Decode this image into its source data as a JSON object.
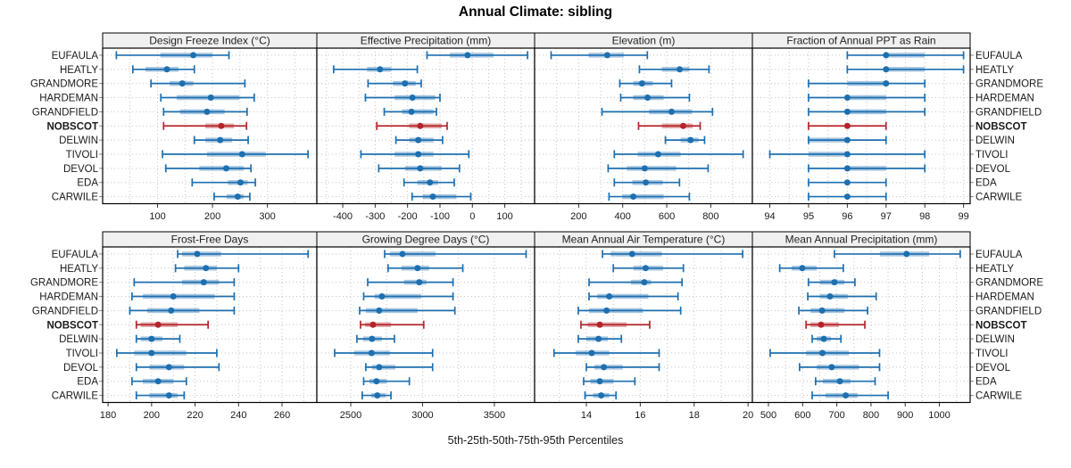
{
  "title": "Annual Climate: sibling",
  "caption": "5th-25th-50th-75th-95th Percentiles",
  "chart_data": {
    "type": "dotplot",
    "title": "Annual Climate: sibling",
    "caption": "5th-25th-50th-75th-95th Percentiles",
    "percentiles": [
      "5th",
      "25th",
      "50th",
      "75th",
      "95th"
    ],
    "legend_position": "none",
    "grid": "dotted",
    "stations": [
      "EUFAULA",
      "HEATLY",
      "GRANDMORE",
      "HARDEMAN",
      "GRANDFIELD",
      "NOBSCOT",
      "DELWIN",
      "TIVOLI",
      "DEVOL",
      "EDA",
      "CARWILE"
    ],
    "highlighted_station": "NOBSCOT",
    "colors": {
      "series_blue": "#1d6fb0",
      "highlight_red": "#b5242b",
      "grid_line": "#c4c4c4",
      "header_bg": "#f0f0f0",
      "panel_border": "#000000",
      "text": "#1a1a1a"
    },
    "panels": [
      {
        "name": "Design Freeze Index (°C)",
        "row": 0,
        "col": 0,
        "xlim": [
          0,
          390
        ],
        "ticks": [
          100,
          200,
          300
        ],
        "grid_step": 50,
        "values": [
          [
            25,
            105,
            165,
            200,
            230
          ],
          [
            55,
            78,
            117,
            138,
            167
          ],
          [
            88,
            122,
            145,
            165,
            259
          ],
          [
            106,
            135,
            197,
            249,
            276
          ],
          [
            111,
            141,
            190,
            222,
            263
          ],
          [
            111,
            187,
            216,
            239,
            262
          ],
          [
            167,
            187,
            214,
            236,
            265
          ],
          [
            109,
            190,
            254,
            297,
            374
          ],
          [
            115,
            176,
            225,
            257,
            270
          ],
          [
            163,
            228,
            251,
            264,
            278
          ],
          [
            203,
            226,
            246,
            257,
            268
          ]
        ]
      },
      {
        "name": "Effective Precipitation (mm)",
        "row": 0,
        "col": 1,
        "xlim": [
          -480,
          192
        ],
        "ticks": [
          -400,
          -300,
          -200,
          -100,
          0,
          100
        ],
        "grid_step": 50,
        "values": [
          [
            -140,
            -70,
            -15,
            65,
            170
          ],
          [
            -428,
            -325,
            -285,
            -250,
            -170
          ],
          [
            -322,
            -245,
            -208,
            -175,
            -158
          ],
          [
            -330,
            -240,
            -185,
            -115,
            -100
          ],
          [
            -272,
            -217,
            -188,
            -120,
            -111
          ],
          [
            -295,
            -195,
            -161,
            -95,
            -78
          ],
          [
            -236,
            -195,
            -167,
            -120,
            -92
          ],
          [
            -344,
            -240,
            -167,
            -120,
            -11
          ],
          [
            -289,
            -208,
            -161,
            -95,
            -40
          ],
          [
            -211,
            -170,
            -131,
            -106,
            -56
          ],
          [
            -186,
            -153,
            -122,
            -50,
            -5
          ]
        ]
      },
      {
        "name": "Elevation (m)",
        "row": 0,
        "col": 2,
        "xlim": [
          0,
          989
        ],
        "ticks": [
          200,
          400,
          600,
          800
        ],
        "grid_step": 100,
        "values": [
          [
            75,
            245,
            330,
            405,
            512
          ],
          [
            476,
            578,
            659,
            703,
            792
          ],
          [
            387,
            448,
            488,
            537,
            622
          ],
          [
            391,
            448,
            513,
            586,
            703
          ],
          [
            306,
            520,
            622,
            715,
            808
          ],
          [
            472,
            578,
            675,
            718,
            752
          ],
          [
            594,
            663,
            708,
            744,
            772
          ],
          [
            362,
            468,
            561,
            663,
            947
          ],
          [
            334,
            419,
            500,
            643,
            788
          ],
          [
            362,
            444,
            505,
            582,
            658
          ],
          [
            338,
            399,
            448,
            586,
            703
          ]
        ]
      },
      {
        "name": "Fraction of Annual PPT as Rain",
        "row": 0,
        "col": 3,
        "xlim": [
          93.55,
          99.17
        ],
        "ticks": [
          94,
          95,
          96,
          97,
          98,
          99
        ],
        "grid_step": 0.5,
        "values": [
          [
            96,
            97,
            97,
            98,
            99
          ],
          [
            96,
            97,
            97,
            98,
            99
          ],
          [
            95,
            96,
            97,
            97,
            98
          ],
          [
            95,
            96,
            96,
            97,
            98
          ],
          [
            95,
            96,
            96,
            97,
            98
          ],
          [
            95,
            96,
            96,
            96,
            97
          ],
          [
            95,
            95,
            96,
            96,
            97
          ],
          [
            94,
            95,
            96,
            96,
            98
          ],
          [
            95,
            96,
            96,
            97,
            98
          ],
          [
            95,
            96,
            96,
            96,
            97
          ],
          [
            95,
            96,
            96,
            96,
            97
          ]
        ]
      },
      {
        "name": "Frost-Free Days",
        "row": 1,
        "col": 0,
        "xlim": [
          177.5,
          276
        ],
        "ticks": [
          180,
          200,
          220,
          240,
          260
        ],
        "grid_step": 10,
        "values": [
          [
            212,
            214,
            221,
            232,
            272
          ],
          [
            211,
            215,
            225,
            230,
            240
          ],
          [
            192,
            214,
            224,
            231,
            238
          ],
          [
            191,
            196,
            210,
            229,
            238
          ],
          [
            190,
            198,
            209,
            222,
            238
          ],
          [
            193,
            195,
            203,
            212,
            226
          ],
          [
            193,
            195,
            200,
            205,
            213
          ],
          [
            184,
            192,
            200,
            216,
            230
          ],
          [
            193,
            199,
            208,
            215,
            231
          ],
          [
            191,
            196,
            203,
            210,
            216
          ],
          [
            193,
            199,
            208,
            212,
            215
          ]
        ]
      },
      {
        "name": "Growing Degree Days (°C)",
        "row": 1,
        "col": 1,
        "xlim": [
          2264,
          3780
        ],
        "ticks": [
          2500,
          3000,
          3500
        ],
        "grid_step": 250,
        "values": [
          [
            2736,
            2772,
            2860,
            3090,
            3721
          ],
          [
            2760,
            2853,
            2965,
            3046,
            3280
          ],
          [
            2618,
            2872,
            2977,
            3027,
            3212
          ],
          [
            2590,
            2667,
            2717,
            2990,
            3212
          ],
          [
            2562,
            2605,
            2698,
            2965,
            3225
          ],
          [
            2568,
            2600,
            2655,
            2780,
            3008
          ],
          [
            2543,
            2586,
            2648,
            2717,
            2804
          ],
          [
            2388,
            2525,
            2645,
            2772,
            3070
          ],
          [
            2605,
            2648,
            2698,
            2810,
            3070
          ],
          [
            2590,
            2630,
            2679,
            2748,
            2908
          ],
          [
            2580,
            2643,
            2685,
            2742,
            2780
          ]
        ]
      },
      {
        "name": "Mean Annual Air Temperature (°C)",
        "row": 1,
        "col": 2,
        "xlim": [
          12.08,
          20.16
        ],
        "ticks": [
          14,
          16,
          18,
          20
        ],
        "grid_step": 1,
        "values": [
          [
            14.6,
            14.9,
            15.7,
            16.8,
            19.8
          ],
          [
            15.0,
            15.75,
            16.2,
            16.85,
            17.6
          ],
          [
            14.1,
            15.65,
            16.15,
            16.4,
            17.55
          ],
          [
            14.1,
            14.4,
            14.85,
            16.3,
            17.4
          ],
          [
            13.7,
            14.1,
            14.75,
            16.1,
            17.5
          ],
          [
            13.8,
            14.05,
            14.5,
            15.5,
            16.35
          ],
          [
            13.7,
            14.0,
            14.45,
            14.8,
            15.3
          ],
          [
            12.8,
            13.6,
            14.2,
            14.85,
            16.7
          ],
          [
            14.0,
            14.3,
            14.65,
            15.35,
            16.7
          ],
          [
            13.9,
            14.15,
            14.5,
            15.0,
            15.8
          ],
          [
            13.95,
            14.25,
            14.55,
            14.85,
            15.1
          ]
        ]
      },
      {
        "name": "Mean Annual Precipitation (mm)",
        "row": 1,
        "col": 3,
        "xlim": [
          453,
          1090
        ],
        "ticks": [
          500,
          600,
          700,
          800,
          900,
          1000
        ],
        "grid_step": 50,
        "values": [
          [
            693,
            826,
            904,
            970,
            1061
          ],
          [
            533,
            568,
            599,
            641,
            719
          ],
          [
            617,
            651,
            693,
            722,
            753
          ],
          [
            615,
            651,
            680,
            732,
            815
          ],
          [
            589,
            623,
            657,
            722,
            790
          ],
          [
            610,
            623,
            654,
            706,
            782
          ],
          [
            628,
            641,
            662,
            683,
            712
          ],
          [
            505,
            610,
            658,
            735,
            825
          ],
          [
            591,
            641,
            685,
            765,
            825
          ],
          [
            638,
            659,
            709,
            740,
            812
          ],
          [
            628,
            667,
            726,
            761,
            850
          ]
        ]
      }
    ]
  }
}
